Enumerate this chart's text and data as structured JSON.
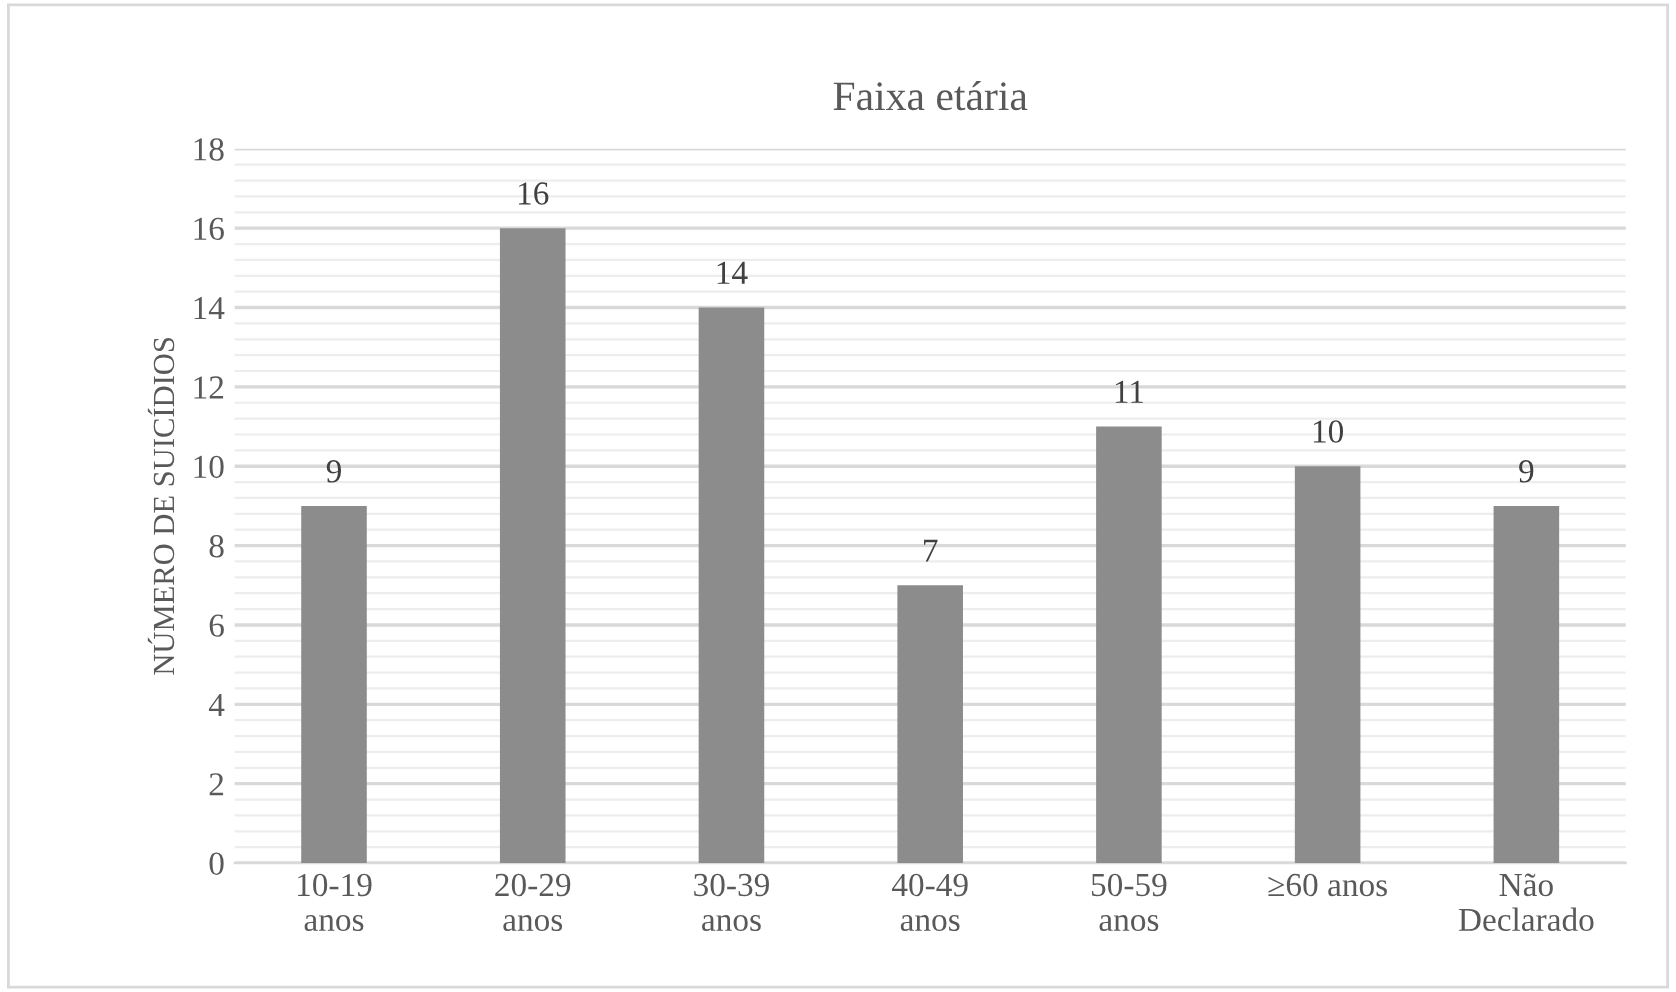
{
  "chart_data": {
    "type": "bar",
    "title": "Faixa etária",
    "ylabel": "NÚMERO DE SUICÍDIOS",
    "categories": [
      "10-19\nanos",
      "20-29\nanos",
      "30-39\nanos",
      "40-49\nanos",
      "50-59\nanos",
      "≥60 anos",
      "Não\nDeclarado"
    ],
    "values": [
      9,
      16,
      14,
      7,
      11,
      10,
      9
    ],
    "color": "#8c8c8c",
    "ylim": [
      0,
      18
    ],
    "yticks": [
      0,
      2,
      4,
      6,
      8,
      10,
      12,
      14,
      16,
      18
    ],
    "grid": "y",
    "data_labels": true
  }
}
